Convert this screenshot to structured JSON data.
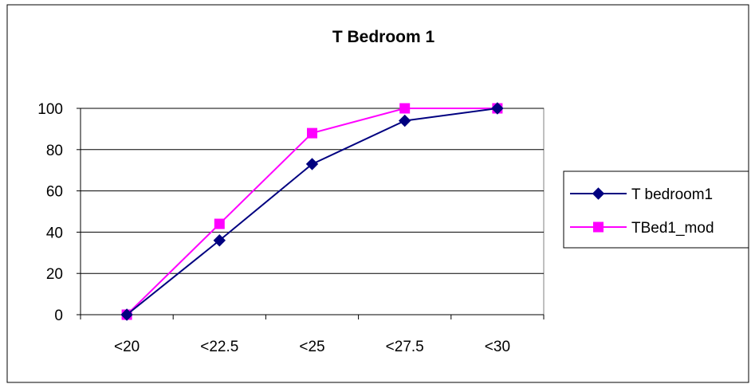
{
  "chart_data": {
    "type": "line",
    "title": "T Bedroom 1",
    "xlabel": "",
    "ylabel": "",
    "categories": [
      "<20",
      "<22.5",
      "<25",
      "<27.5",
      "<30"
    ],
    "ylim": [
      0,
      100
    ],
    "yticks": [
      "0",
      "20",
      "40",
      "60",
      "80",
      "100"
    ],
    "grid": true,
    "legend_position": "right",
    "series": [
      {
        "name": "T bedroom1",
        "values": [
          0,
          36,
          73,
          94,
          100
        ],
        "color": "#000080",
        "marker": "diamond"
      },
      {
        "name": "TBed1_mod",
        "values": [
          0,
          44,
          88,
          100,
          100
        ],
        "color": "#ff00ff",
        "marker": "square"
      }
    ]
  }
}
